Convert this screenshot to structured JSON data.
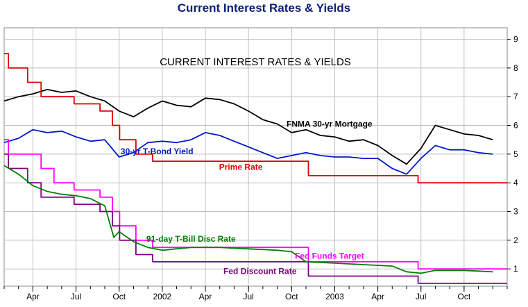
{
  "page": {
    "title": "Current Interest Rates & Yields"
  },
  "chart_data": {
    "type": "line",
    "title": "Current Interest Rates & Yields",
    "inner_title": "CURRENT INTEREST RATES & YIELDS",
    "x_ticks": [
      "Apr",
      "Jul",
      "Oct",
      "2002",
      "Apr",
      "Jul",
      "Oct",
      "2003",
      "Apr",
      "Jul",
      "Oct"
    ],
    "x_tick_dates": [
      "2001-04",
      "2001-07",
      "2001-10",
      "2002-01",
      "2002-04",
      "2002-07",
      "2002-10",
      "2003-01",
      "2003-04",
      "2003-07",
      "2003-10"
    ],
    "y_ticks": [
      "1",
      "2",
      "3",
      "4",
      "5",
      "6",
      "7",
      "8",
      "9"
    ],
    "xlim": [
      "2001-02",
      "2004-01"
    ],
    "ylim": [
      0.4,
      9.4
    ],
    "grid": true,
    "series": [
      {
        "name": "FNMA 30-yr Mortgage",
        "color": "#000000",
        "points": [
          [
            "2001-02",
            6.85
          ],
          [
            "2001-03",
            7.0
          ],
          [
            "2001-04",
            7.1
          ],
          [
            "2001-05",
            7.25
          ],
          [
            "2001-06",
            7.15
          ],
          [
            "2001-07",
            7.2
          ],
          [
            "2001-08",
            7.0
          ],
          [
            "2001-09",
            6.85
          ],
          [
            "2001-10",
            6.5
          ],
          [
            "2001-11",
            6.3
          ],
          [
            "2001-12",
            6.6
          ],
          [
            "2002-01",
            6.85
          ],
          [
            "2002-02",
            6.7
          ],
          [
            "2002-03",
            6.65
          ],
          [
            "2002-04",
            6.95
          ],
          [
            "2002-05",
            6.9
          ],
          [
            "2002-06",
            6.75
          ],
          [
            "2002-07",
            6.5
          ],
          [
            "2002-08",
            6.2
          ],
          [
            "2002-09",
            6.05
          ],
          [
            "2002-10",
            5.75
          ],
          [
            "2002-11",
            5.85
          ],
          [
            "2002-12",
            5.65
          ],
          [
            "2003-01",
            5.6
          ],
          [
            "2003-02",
            5.45
          ],
          [
            "2003-03",
            5.5
          ],
          [
            "2003-04",
            5.3
          ],
          [
            "2003-05",
            4.95
          ],
          [
            "2003-06",
            4.65
          ],
          [
            "2003-07",
            5.2
          ],
          [
            "2003-08",
            6.0
          ],
          [
            "2003-09",
            5.85
          ],
          [
            "2003-10",
            5.7
          ],
          [
            "2003-11",
            5.65
          ],
          [
            "2003-12",
            5.5
          ]
        ]
      },
      {
        "name": "30-yr T-Bond Yield",
        "color": "#0018c8",
        "points": [
          [
            "2001-02",
            5.4
          ],
          [
            "2001-03",
            5.55
          ],
          [
            "2001-04",
            5.85
          ],
          [
            "2001-05",
            5.75
          ],
          [
            "2001-06",
            5.8
          ],
          [
            "2001-07",
            5.6
          ],
          [
            "2001-08",
            5.45
          ],
          [
            "2001-09",
            5.5
          ],
          [
            "2001-10",
            4.9
          ],
          [
            "2001-11",
            5.05
          ],
          [
            "2001-12",
            5.4
          ],
          [
            "2002-01",
            5.45
          ],
          [
            "2002-02",
            5.4
          ],
          [
            "2002-03",
            5.5
          ],
          [
            "2002-04",
            5.75
          ],
          [
            "2002-05",
            5.65
          ],
          [
            "2002-06",
            5.45
          ],
          [
            "2002-07",
            5.25
          ],
          [
            "2002-08",
            5.05
          ],
          [
            "2002-09",
            4.85
          ],
          [
            "2002-10",
            4.95
          ],
          [
            "2002-11",
            5.05
          ],
          [
            "2002-12",
            4.95
          ],
          [
            "2003-01",
            4.9
          ],
          [
            "2003-02",
            4.9
          ],
          [
            "2003-03",
            4.85
          ],
          [
            "2003-04",
            4.85
          ],
          [
            "2003-05",
            4.5
          ],
          [
            "2003-06",
            4.3
          ],
          [
            "2003-07",
            4.85
          ],
          [
            "2003-08",
            5.3
          ],
          [
            "2003-09",
            5.15
          ],
          [
            "2003-10",
            5.15
          ],
          [
            "2003-11",
            5.05
          ],
          [
            "2003-12",
            5.0
          ]
        ]
      },
      {
        "name": "Prime Rate",
        "color": "#e00000",
        "step": true,
        "points": [
          [
            "2001-02",
            8.5
          ],
          [
            "2001-02-10",
            8.0
          ],
          [
            "2001-03-20",
            7.5
          ],
          [
            "2001-04-18",
            7.0
          ],
          [
            "2001-05-15",
            7.0
          ],
          [
            "2001-06-27",
            6.75
          ],
          [
            "2001-08-21",
            6.5
          ],
          [
            "2001-09-17",
            6.0
          ],
          [
            "2001-10-02",
            5.5
          ],
          [
            "2001-11-06",
            5.0
          ],
          [
            "2001-12-11",
            4.75
          ],
          [
            "2002-11-06",
            4.25
          ],
          [
            "2003-06-25",
            4.0
          ],
          [
            "2004-01",
            4.0
          ]
        ]
      },
      {
        "name": "Fed Funds Target",
        "color": "#ff00ff",
        "step": true,
        "points": [
          [
            "2001-02",
            5.5
          ],
          [
            "2001-02-10",
            5.0
          ],
          [
            "2001-03-20",
            5.0
          ],
          [
            "2001-04-18",
            4.5
          ],
          [
            "2001-05-15",
            4.0
          ],
          [
            "2001-06-27",
            3.75
          ],
          [
            "2001-08-21",
            3.5
          ],
          [
            "2001-09-17",
            3.0
          ],
          [
            "2001-10-02",
            2.5
          ],
          [
            "2001-11-06",
            2.0
          ],
          [
            "2001-12-11",
            1.75
          ],
          [
            "2002-11-06",
            1.25
          ],
          [
            "2003-06-25",
            1.0
          ],
          [
            "2004-01",
            1.0
          ]
        ]
      },
      {
        "name": "Fed Discount Rate",
        "color": "#800080",
        "step": true,
        "points": [
          [
            "2001-02",
            5.0
          ],
          [
            "2001-02-10",
            4.5
          ],
          [
            "2001-03-20",
            4.0
          ],
          [
            "2001-04-18",
            3.5
          ],
          [
            "2001-05-15",
            3.5
          ],
          [
            "2001-06-27",
            3.25
          ],
          [
            "2001-08-21",
            3.0
          ],
          [
            "2001-09-17",
            2.5
          ],
          [
            "2001-10-02",
            2.0
          ],
          [
            "2001-11-06",
            1.5
          ],
          [
            "2001-12-11",
            1.25
          ],
          [
            "2002-11-06",
            0.75
          ],
          [
            "2003-06-25",
            0.5
          ],
          [
            "2004-01",
            0.5
          ]
        ]
      },
      {
        "name": "91-day T-Bill Disc Rate",
        "color": "#008000",
        "points": [
          [
            "2001-02",
            4.6
          ],
          [
            "2001-03",
            4.3
          ],
          [
            "2001-04",
            3.9
          ],
          [
            "2001-05",
            3.7
          ],
          [
            "2001-06",
            3.6
          ],
          [
            "2001-07",
            3.55
          ],
          [
            "2001-08",
            3.45
          ],
          [
            "2001-09",
            3.2
          ],
          [
            "2001-09-20",
            2.1
          ],
          [
            "2001-10",
            2.3
          ],
          [
            "2001-11",
            1.95
          ],
          [
            "2001-12",
            1.75
          ],
          [
            "2002-01",
            1.65
          ],
          [
            "2002-03",
            1.75
          ],
          [
            "2002-05",
            1.75
          ],
          [
            "2002-07",
            1.7
          ],
          [
            "2002-09",
            1.65
          ],
          [
            "2002-10",
            1.6
          ],
          [
            "2002-11",
            1.25
          ],
          [
            "2003-01",
            1.2
          ],
          [
            "2003-03",
            1.15
          ],
          [
            "2003-05",
            1.1
          ],
          [
            "2003-06",
            0.9
          ],
          [
            "2003-07",
            0.85
          ],
          [
            "2003-08",
            0.95
          ],
          [
            "2003-10",
            0.95
          ],
          [
            "2003-12",
            0.9
          ]
        ]
      }
    ],
    "annotations": [
      {
        "text": "FNMA 30-yr Mortgage",
        "color": "#000000",
        "x": "2002-12-20",
        "y": 5.95
      },
      {
        "text": "30-yr T-Bond Yield",
        "color": "#0018c8",
        "x": "2001-12-20",
        "y": 5.0
      },
      {
        "text": "Prime Rate",
        "color": "#e00000",
        "x": "2002-06-15",
        "y": 4.45
      },
      {
        "text": "91-day T-Bill Disc Rate",
        "color": "#008000",
        "x": "2002-03-01",
        "y": 1.95
      },
      {
        "text": "Fed Funds Target",
        "color": "#ff00ff",
        "x": "2002-12-20",
        "y": 1.35
      },
      {
        "text": "Fed Discount Rate",
        "color": "#800080",
        "x": "2002-07-25",
        "y": 0.82
      }
    ]
  }
}
